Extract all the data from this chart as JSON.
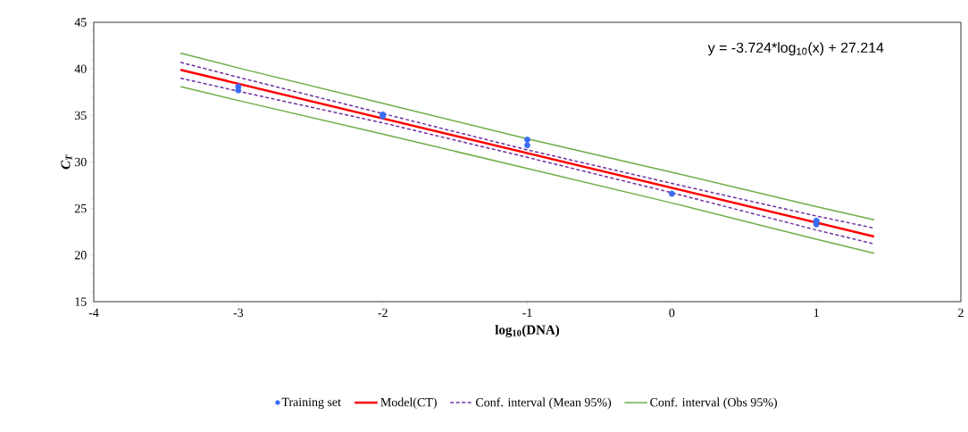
{
  "chart_data": {
    "type": "line",
    "xlabel": "log$_{10}$(DNA)",
    "ylabel": "C$_{T}$",
    "annotations": [
      "y = -3.724*log$_{10}$(x) + 27.214"
    ],
    "xlim": [
      -4,
      2
    ],
    "xticks": [
      -4,
      -3,
      -2,
      -1,
      0,
      1,
      2
    ],
    "ylim": [
      15,
      45
    ],
    "yticks": [
      15,
      20,
      25,
      30,
      35,
      40,
      45
    ],
    "grid": false,
    "legend": "bottom",
    "series": [
      {
        "name": "Training set",
        "type": "scatter",
        "color": "#3b6cf5",
        "x": [
          -3,
          -3,
          -2,
          -2,
          -1,
          -1,
          0,
          1,
          1,
          1
        ],
        "values": [
          38.1,
          37.7,
          35.1,
          34.9,
          32.4,
          31.8,
          26.6,
          23.7,
          23.3,
          23.6
        ]
      },
      {
        "name": "Model(CT)",
        "line_style": "solid",
        "color": "#ff0000",
        "x": [
          -3.4,
          1.4
        ],
        "values": [
          39.9,
          22.0
        ]
      },
      {
        "name": "Conf. interval (Mean 95%)",
        "line_style": "dashed",
        "color": "#7030a0",
        "x": [
          -3.4,
          -3,
          -2,
          -1,
          0,
          1,
          1.4
        ],
        "values": [
          40.7,
          39.1,
          35.2,
          31.3,
          27.7,
          24.2,
          22.9
        ]
      },
      {
        "line_style": "dashed",
        "color": "#7030a0",
        "x": [
          -3.4,
          -3,
          -2,
          -1,
          0,
          1,
          1.4
        ],
        "values": [
          39.0,
          37.6,
          34.2,
          30.5,
          26.7,
          22.7,
          21.2
        ]
      },
      {
        "name": "Conf. interval (Obs 95%)",
        "line_style": "solid",
        "color": "#70ad47",
        "x": [
          -3.4,
          -3,
          -2,
          -1,
          0,
          1,
          1.4
        ],
        "values": [
          41.7,
          40.1,
          36.3,
          32.5,
          28.9,
          25.2,
          23.8
        ]
      },
      {
        "line_style": "solid",
        "color": "#70ad47",
        "x": [
          -3.4,
          -3,
          -2,
          -1,
          0,
          1,
          1.4
        ],
        "values": [
          38.1,
          36.6,
          33.0,
          29.3,
          25.6,
          21.7,
          20.2
        ]
      }
    ]
  }
}
